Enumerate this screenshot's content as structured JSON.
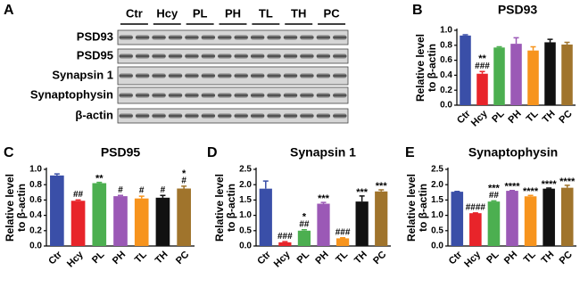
{
  "blot": {
    "panel": "A",
    "lanes": [
      "Ctr",
      "Hcy",
      "PL",
      "PH",
      "TL",
      "TH",
      "PC"
    ],
    "rows": [
      "PSD93",
      "PSD95",
      "Synapsin 1",
      "Synaptophysin",
      "β-actin"
    ]
  },
  "chart_data": [
    {
      "type": "bar",
      "panel": "B",
      "title": "PSD93",
      "ylabel": [
        "Relative level",
        "to β-actin"
      ],
      "categories": [
        "Ctr",
        "Hcy",
        "PL",
        "PH",
        "TL",
        "TH",
        "PC"
      ],
      "values": [
        0.93,
        0.42,
        0.77,
        0.82,
        0.73,
        0.84,
        0.81
      ],
      "errors": [
        0.01,
        0.03,
        0.01,
        0.08,
        0.05,
        0.04,
        0.03
      ],
      "colors": [
        "#3a4fa8",
        "#e8242a",
        "#4caf50",
        "#9b59b6",
        "#f7941d",
        "#111111",
        "#a0742c"
      ],
      "stars": [
        null,
        "**",
        null,
        null,
        null,
        null,
        null
      ],
      "hashes": [
        null,
        "###",
        null,
        null,
        null,
        null,
        null
      ],
      "ylim": [
        0,
        1.0
      ],
      "yticks": [
        {
          "value": 0,
          "label": "0.0"
        },
        0.2,
        0.4,
        0.6,
        0.8,
        {
          "value": 1.0,
          "label": "1.0"
        }
      ]
    },
    {
      "type": "bar",
      "panel": "C",
      "title": "PSD95",
      "ylabel": [
        "Relative level",
        "to β-actin"
      ],
      "categories": [
        "Ctr",
        "Hcy",
        "PL",
        "PH",
        "TL",
        "TH",
        "PC"
      ],
      "values": [
        0.92,
        0.59,
        0.82,
        0.65,
        0.62,
        0.63,
        0.75
      ],
      "errors": [
        0.02,
        0.01,
        0.01,
        0.01,
        0.03,
        0.03,
        0.03
      ],
      "colors": [
        "#3a4fa8",
        "#e8242a",
        "#4caf50",
        "#9b59b6",
        "#f7941d",
        "#111111",
        "#a0742c"
      ],
      "stars": [
        null,
        null,
        "**",
        null,
        null,
        null,
        "*"
      ],
      "hashes": [
        null,
        "##",
        null,
        "#",
        "#",
        "#",
        "#"
      ],
      "ylim": [
        0,
        1.0
      ],
      "yticks": [
        {
          "value": 0,
          "label": "0.0"
        },
        0.2,
        0.4,
        0.6,
        0.8,
        {
          "value": 1.0,
          "label": "1.0"
        }
      ]
    },
    {
      "type": "bar",
      "panel": "D",
      "title": "Synapsin 1",
      "ylabel": [
        "Relative level",
        "to β-actin"
      ],
      "categories": [
        "Ctr",
        "Hcy",
        "PL",
        "PH",
        "TL",
        "TH",
        "PC"
      ],
      "values": [
        1.87,
        0.12,
        0.5,
        1.38,
        0.25,
        1.45,
        1.78
      ],
      "errors": [
        0.25,
        0.02,
        0.03,
        0.04,
        0.02,
        0.18,
        0.05
      ],
      "colors": [
        "#3a4fa8",
        "#e8242a",
        "#4caf50",
        "#9b59b6",
        "#f7941d",
        "#111111",
        "#a0742c"
      ],
      "stars": [
        null,
        null,
        "*",
        "***",
        null,
        "***",
        "***"
      ],
      "hashes": [
        null,
        "###",
        "##",
        null,
        "###",
        null,
        null
      ],
      "ylim": [
        0,
        2.5
      ],
      "yticks": [
        {
          "value": 0,
          "label": "0.0"
        },
        0.5,
        {
          "value": 1.0,
          "label": "1.0"
        },
        1.5,
        {
          "value": 2.0,
          "label": "2.0"
        },
        2.5
      ]
    },
    {
      "type": "bar",
      "panel": "E",
      "title": "Synaptophysin",
      "ylabel": [
        "Relative level",
        "to β-actin"
      ],
      "categories": [
        "Ctr",
        "Hcy",
        "PL",
        "PH",
        "TL",
        "TH",
        "PC"
      ],
      "values": [
        1.77,
        1.07,
        1.45,
        1.8,
        1.62,
        1.87,
        1.9
      ],
      "errors": [
        0.01,
        0.01,
        0.02,
        0.01,
        0.03,
        0.02,
        0.08
      ],
      "colors": [
        "#3a4fa8",
        "#e8242a",
        "#4caf50",
        "#9b59b6",
        "#f7941d",
        "#111111",
        "#a0742c"
      ],
      "stars": [
        null,
        null,
        "***",
        "****",
        "****",
        "****",
        "****"
      ],
      "hashes": [
        null,
        "####",
        "##",
        null,
        null,
        null,
        null
      ],
      "ylim": [
        0,
        2.5
      ],
      "yticks": [
        {
          "value": 0,
          "label": "0.0"
        },
        0.5,
        {
          "value": 1.0,
          "label": "1.0"
        },
        1.5,
        {
          "value": 2.0,
          "label": "2.0"
        },
        2.5
      ]
    }
  ]
}
